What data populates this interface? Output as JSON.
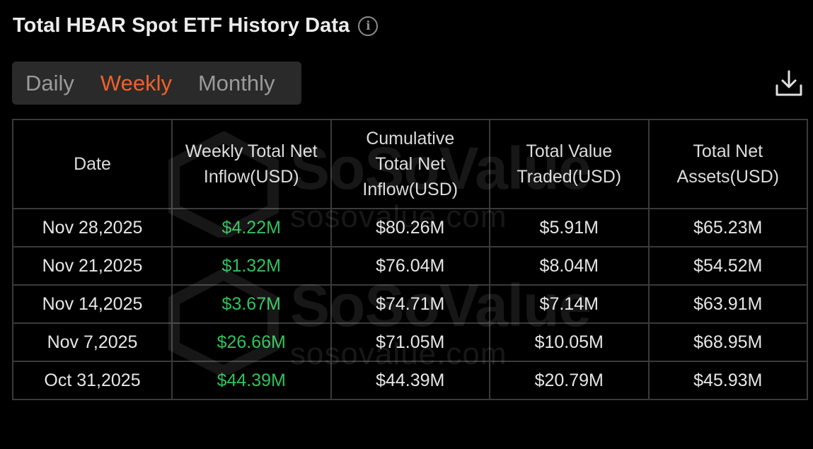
{
  "header": {
    "title": "Total HBAR Spot ETF History Data",
    "info_icon": "info-icon"
  },
  "tabs": [
    {
      "label": "Daily",
      "active": false
    },
    {
      "label": "Weekly",
      "active": true
    },
    {
      "label": "Monthly",
      "active": false
    }
  ],
  "toolbar": {
    "download_icon": "download-icon"
  },
  "colors": {
    "accent": "#f0612a",
    "positive": "#2fc25b",
    "background": "#000000"
  },
  "table": {
    "columns": [
      "Date",
      "Weekly Total Net Inflow(USD)",
      "Cumulative Total Net Inflow(USD)",
      "Total Value Traded(USD)",
      "Total Net Assets(USD)"
    ],
    "rows": [
      [
        "Nov 28,2025",
        "$4.22M",
        "$80.26M",
        "$5.91M",
        "$65.23M"
      ],
      [
        "Nov 21,2025",
        "$1.32M",
        "$76.04M",
        "$8.04M",
        "$54.52M"
      ],
      [
        "Nov 14,2025",
        "$3.67M",
        "$74.71M",
        "$7.14M",
        "$63.91M"
      ],
      [
        "Nov 7,2025",
        "$26.66M",
        "$71.05M",
        "$10.05M",
        "$68.95M"
      ],
      [
        "Oct 31,2025",
        "$44.39M",
        "$44.39M",
        "$20.79M",
        "$45.93M"
      ]
    ]
  },
  "watermark": {
    "logo": "SoSoValue",
    "url": "sosovalue.com"
  }
}
